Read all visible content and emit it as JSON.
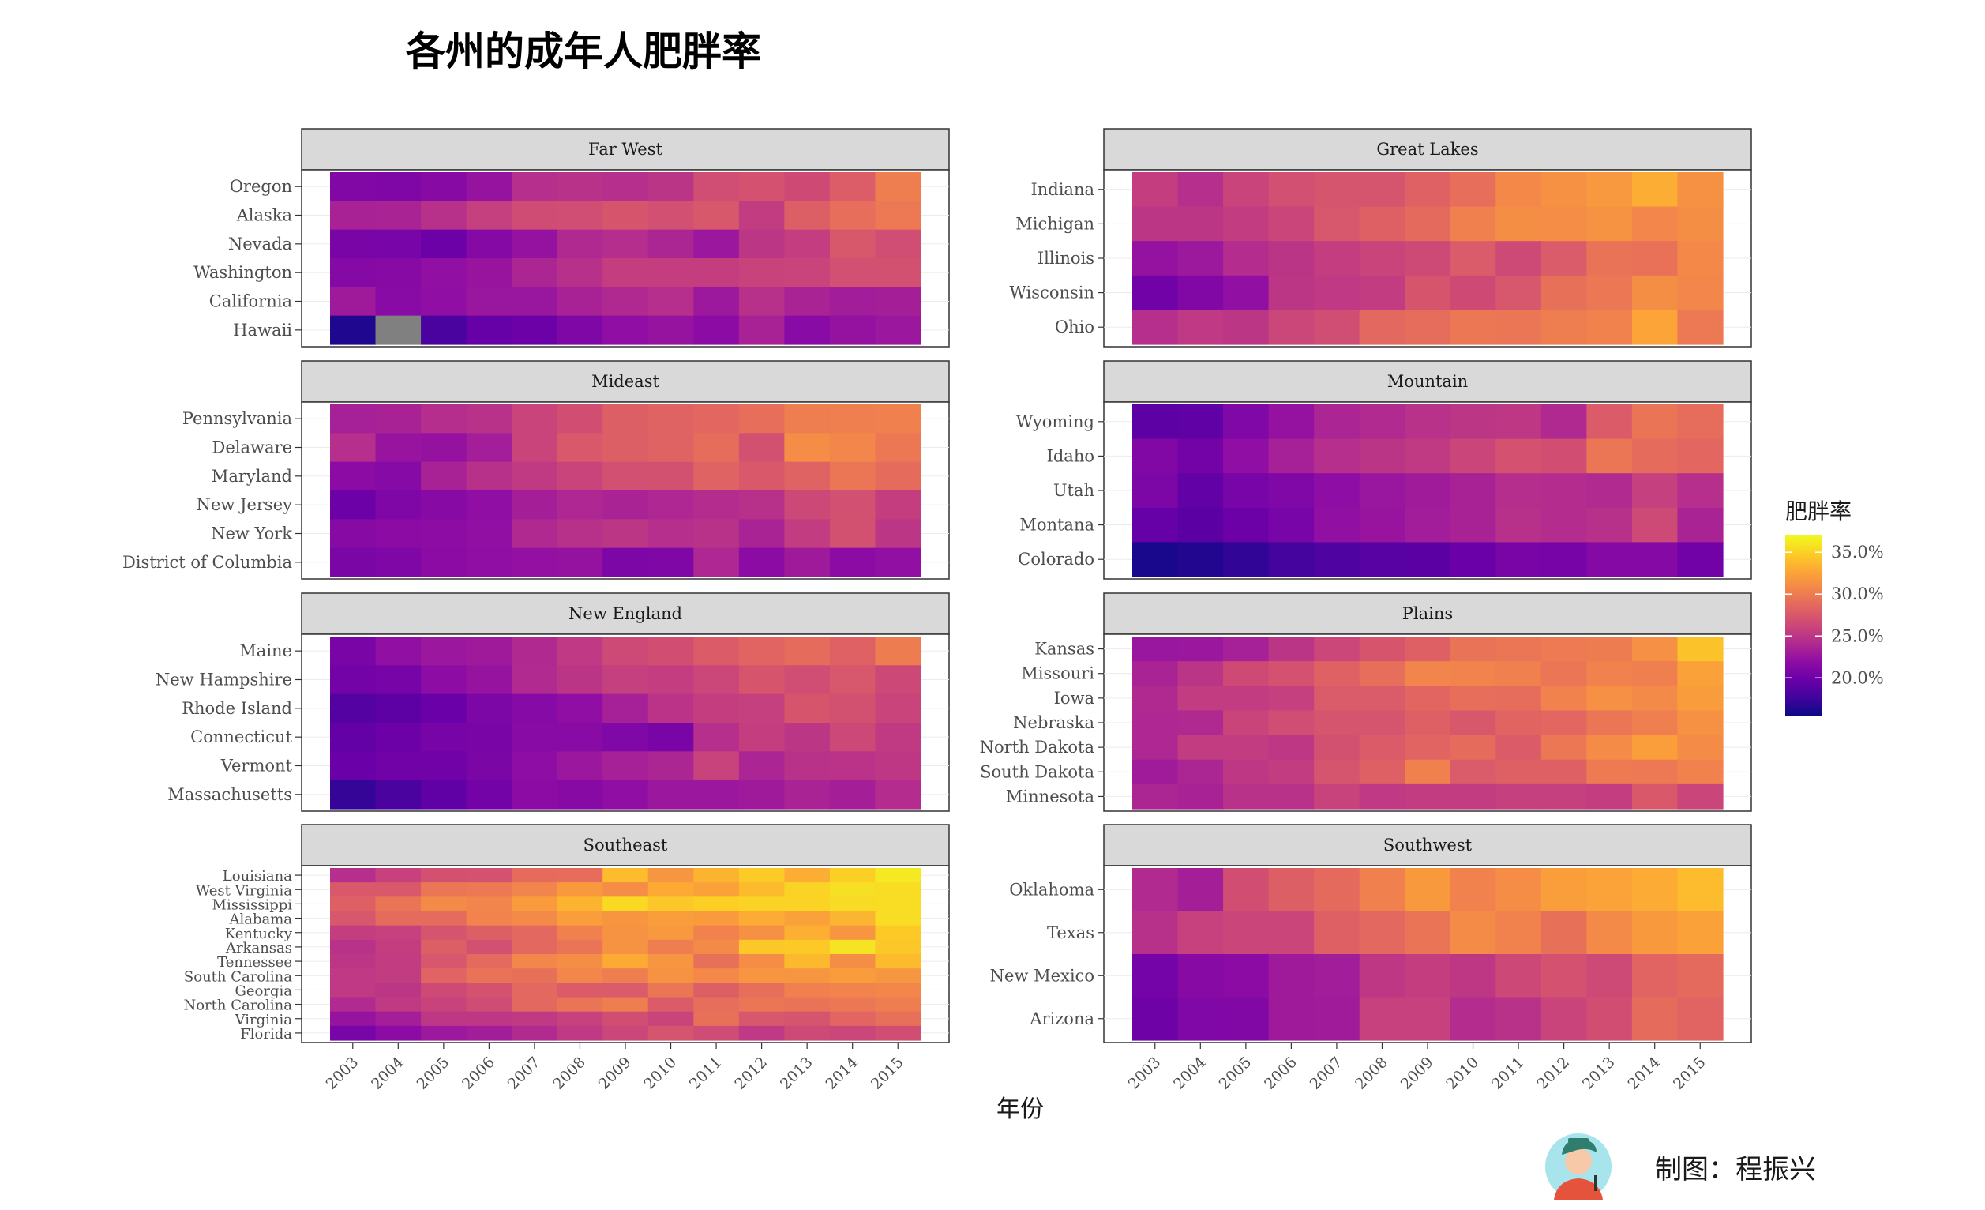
{
  "chart_data": {
    "type": "heatmap",
    "title": "各州的成年人肥胖率",
    "xlabel": "年份",
    "legend": {
      "title": "肥胖率",
      "labels": [
        "20.0%",
        "25.0%",
        "30.0%",
        "35.0%"
      ],
      "breaks": [
        20,
        25,
        30,
        35
      ],
      "range": [
        15.5,
        37
      ],
      "colormap": "plasma",
      "missing_color": "#808080",
      "placement": "right"
    },
    "years": [
      "2003",
      "2004",
      "2005",
      "2006",
      "2007",
      "2008",
      "2009",
      "2010",
      "2011",
      "2012",
      "2013",
      "2014",
      "2015"
    ],
    "panels": [
      {
        "name": "Far West",
        "states": [
          {
            "name": "Oregon",
            "values": [
              21.2,
              21.0,
              21.5,
              22.4,
              24.5,
              24.7,
              24.5,
              24.9,
              26.7,
              27.1,
              26.5,
              27.9,
              30.1
            ]
          },
          {
            "name": "Alaska",
            "values": [
              23.5,
              23.6,
              24.6,
              25.7,
              26.6,
              26.7,
              27.3,
              26.9,
              27.5,
              25.4,
              28.0,
              29.1,
              29.8
            ]
          },
          {
            "name": "Nevada",
            "values": [
              20.7,
              20.6,
              20.0,
              21.3,
              22.3,
              24.0,
              24.4,
              23.8,
              22.7,
              25.0,
              25.5,
              27.5,
              26.7
            ]
          },
          {
            "name": "Washington",
            "values": [
              21.3,
              21.5,
              22.1,
              22.5,
              23.8,
              24.6,
              25.6,
              25.6,
              25.6,
              25.9,
              26.0,
              26.9,
              27.0
            ]
          },
          {
            "name": "California",
            "values": [
              22.9,
              21.6,
              22.0,
              22.6,
              22.6,
              23.5,
              24.0,
              24.5,
              22.8,
              24.6,
              23.6,
              23.1,
              23.3
            ]
          },
          {
            "name": "Hawaii",
            "values": [
              16.3,
              null,
              18.2,
              19.6,
              20.0,
              21.0,
              22.0,
              22.4,
              21.7,
              23.5,
              21.6,
              22.3,
              22.7
            ]
          }
        ]
      },
      {
        "name": "Great Lakes",
        "states": [
          {
            "name": "Indiana",
            "values": [
              25.6,
              24.5,
              26.0,
              26.9,
              27.2,
              27.2,
              28.2,
              29.1,
              30.8,
              31.4,
              31.8,
              33.1,
              31.4
            ]
          },
          {
            "name": "Michigan",
            "values": [
              25.0,
              25.0,
              25.4,
              26.1,
              27.4,
              28.1,
              28.8,
              30.3,
              31.2,
              31.1,
              31.5,
              30.7,
              31.2
            ]
          },
          {
            "name": "Illinois",
            "values": [
              22.3,
              22.8,
              24.3,
              24.9,
              25.5,
              26.0,
              26.4,
              27.7,
              26.4,
              27.7,
              29.4,
              29.3,
              30.8
            ]
          },
          {
            "name": "Wisconsin",
            "values": [
              20.2,
              21.2,
              22.1,
              25.0,
              25.2,
              25.4,
              27.3,
              26.5,
              27.4,
              29.2,
              29.7,
              31.2,
              30.7
            ]
          },
          {
            "name": "Ohio",
            "values": [
              24.5,
              25.2,
              25.0,
              26.2,
              26.7,
              28.7,
              29.0,
              29.7,
              29.6,
              30.1,
              30.4,
              32.6,
              29.8
            ]
          }
        ]
      },
      {
        "name": "Mideast",
        "states": [
          {
            "name": "Pennsylvania",
            "values": [
              23.4,
              23.5,
              24.4,
              24.7,
              26.0,
              26.8,
              28.0,
              28.3,
              28.6,
              29.1,
              30.1,
              30.2,
              30.3
            ]
          },
          {
            "name": "Delaware",
            "values": [
              24.5,
              22.5,
              22.3,
              23.2,
              26.0,
              27.6,
              28.0,
              28.3,
              29.0,
              27.0,
              31.1,
              30.7,
              29.7
            ]
          },
          {
            "name": "Maryland",
            "values": [
              21.7,
              21.4,
              23.5,
              24.6,
              25.3,
              26.0,
              26.9,
              27.0,
              28.3,
              27.6,
              28.3,
              29.6,
              28.9
            ]
          },
          {
            "name": "New Jersey",
            "values": [
              19.9,
              21.0,
              21.5,
              22.0,
              23.3,
              23.9,
              23.6,
              23.9,
              24.3,
              24.6,
              26.3,
              26.9,
              25.6
            ]
          },
          {
            "name": "New York",
            "values": [
              21.5,
              21.7,
              21.8,
              22.1,
              24.0,
              24.6,
              25.0,
              24.5,
              24.7,
              23.6,
              25.4,
              27.0,
              25.0
            ]
          },
          {
            "name": "District of Columbia",
            "values": [
              20.8,
              21.0,
              21.7,
              22.0,
              22.2,
              22.3,
              20.9,
              21.0,
              23.9,
              21.7,
              22.9,
              21.7,
              22.1
            ]
          }
        ]
      },
      {
        "name": "Mountain",
        "states": [
          {
            "name": "Wyoming",
            "values": [
              19.1,
              19.3,
              21.1,
              22.3,
              23.7,
              24.1,
              24.7,
              25.0,
              25.1,
              24.0,
              27.8,
              29.5,
              29.0
            ]
          },
          {
            "name": "Idaho",
            "values": [
              21.2,
              20.3,
              22.0,
              23.4,
              24.5,
              24.9,
              25.3,
              26.1,
              27.1,
              26.8,
              29.6,
              28.9,
              28.6
            ]
          },
          {
            "name": "Utah",
            "values": [
              20.9,
              19.4,
              20.6,
              21.1,
              21.9,
              22.6,
              23.0,
              23.5,
              24.4,
              24.3,
              24.1,
              25.7,
              24.5
            ]
          },
          {
            "name": "Montana",
            "values": [
              19.6,
              19.0,
              19.9,
              20.6,
              22.1,
              22.5,
              23.1,
              23.5,
              24.6,
              24.3,
              24.6,
              26.4,
              23.6
            ]
          },
          {
            "name": "Colorado",
            "values": [
              16.0,
              16.4,
              17.0,
              17.9,
              18.4,
              18.9,
              19.0,
              19.8,
              20.7,
              20.5,
              21.3,
              21.3,
              20.2
            ]
          }
        ]
      },
      {
        "name": "New England",
        "states": [
          {
            "name": "Maine",
            "values": [
              20.7,
              22.1,
              22.7,
              22.9,
              24.0,
              25.2,
              26.4,
              26.8,
              27.8,
              28.4,
              28.9,
              28.2,
              30.0
            ]
          },
          {
            "name": "New Hampshire",
            "values": [
              20.3,
              20.5,
              21.8,
              22.4,
              24.1,
              24.9,
              25.7,
              25.5,
              26.2,
              27.3,
              26.7,
              27.4,
              26.3
            ]
          },
          {
            "name": "Rhode Island",
            "values": [
              18.7,
              19.1,
              19.8,
              20.9,
              21.4,
              22.0,
              23.4,
              24.8,
              25.6,
              25.7,
              27.3,
              27.0,
              26.0
            ]
          },
          {
            "name": "Connecticut",
            "values": [
              19.5,
              19.9,
              20.5,
              20.7,
              21.6,
              21.6,
              21.1,
              20.7,
              24.5,
              25.6,
              25.0,
              26.3,
              25.3
            ]
          },
          {
            "name": "Vermont",
            "values": [
              19.8,
              20.2,
              20.2,
              20.8,
              21.9,
              22.7,
              23.4,
              23.8,
              25.9,
              23.7,
              24.7,
              24.8,
              25.1
            ]
          },
          {
            "name": "Massachusetts",
            "values": [
              17.1,
              18.1,
              19.2,
              20.3,
              21.7,
              21.5,
              22.0,
              22.7,
              22.7,
              22.9,
              23.6,
              23.3,
              24.3
            ]
          }
        ]
      },
      {
        "name": "Plains",
        "states": [
          {
            "name": "Kansas",
            "values": [
              22.6,
              22.7,
              23.4,
              24.9,
              26.2,
              27.3,
              28.1,
              29.4,
              29.6,
              29.9,
              30.0,
              31.3,
              34.2
            ]
          },
          {
            "name": "Missouri",
            "values": [
              23.6,
              24.9,
              26.5,
              27.1,
              28.2,
              29.1,
              30.6,
              30.5,
              30.3,
              29.6,
              30.4,
              30.2,
              32.4
            ]
          },
          {
            "name": "Iowa",
            "values": [
              24.0,
              25.4,
              25.4,
              25.7,
              27.7,
              27.7,
              28.5,
              29.1,
              29.0,
              30.4,
              31.3,
              30.9,
              32.1
            ]
          },
          {
            "name": "Nebraska",
            "values": [
              23.9,
              24.0,
              26.0,
              26.7,
              27.2,
              27.2,
              28.1,
              27.5,
              28.4,
              28.6,
              29.6,
              30.2,
              31.4
            ]
          },
          {
            "name": "North Dakota",
            "values": [
              23.9,
              25.4,
              25.4,
              25.1,
              27.0,
              27.8,
              28.4,
              28.9,
              27.8,
              29.7,
              31.0,
              32.2,
              31.0
            ]
          },
          {
            "name": "South Dakota",
            "values": [
              23.0,
              23.8,
              25.1,
              25.4,
              27.2,
              28.1,
              30.3,
              27.7,
              28.1,
              28.1,
              29.9,
              29.8,
              30.4
            ]
          },
          {
            "name": "Minnesota",
            "values": [
              23.8,
              23.5,
              24.7,
              24.7,
              25.9,
              25.2,
              25.4,
              25.4,
              25.7,
              25.7,
              25.5,
              27.6,
              26.1
            ]
          }
        ]
      },
      {
        "name": "Southeast",
        "states": [
          {
            "name": "Louisiana",
            "values": [
              24.5,
              25.8,
              27.0,
              27.1,
              28.9,
              29.0,
              33.9,
              31.7,
              33.4,
              34.7,
              33.1,
              34.9,
              36.2
            ]
          },
          {
            "name": "West Virginia",
            "values": [
              27.6,
              27.6,
              29.6,
              29.8,
              30.6,
              31.9,
              31.1,
              32.9,
              32.4,
              33.8,
              35.1,
              35.7,
              35.6
            ]
          },
          {
            "name": "Mississippi",
            "values": [
              28.1,
              29.5,
              30.9,
              30.6,
              32.0,
              33.4,
              35.4,
              34.5,
              34.9,
              35.1,
              35.1,
              35.5,
              35.6
            ]
          },
          {
            "name": "Alabama",
            "values": [
              27.4,
              28.9,
              28.9,
              30.5,
              30.9,
              32.2,
              31.6,
              32.2,
              32.0,
              33.0,
              32.4,
              33.5,
              35.6
            ]
          },
          {
            "name": "Kentucky",
            "values": [
              25.6,
              25.8,
              27.2,
              28.0,
              28.7,
              30.3,
              31.5,
              31.8,
              30.4,
              31.3,
              33.2,
              31.6,
              34.6
            ]
          },
          {
            "name": "Arkansas",
            "values": [
              24.7,
              25.6,
              28.0,
              26.9,
              28.7,
              29.5,
              31.5,
              30.1,
              30.9,
              34.5,
              34.6,
              35.9,
              34.5
            ]
          },
          {
            "name": "Tennessee",
            "values": [
              25.0,
              25.4,
              27.4,
              28.8,
              30.7,
              31.2,
              32.9,
              31.7,
              29.2,
              31.1,
              33.7,
              31.2,
              33.8
            ]
          },
          {
            "name": "South Carolina",
            "values": [
              25.2,
              25.4,
              28.4,
              29.4,
              29.2,
              30.7,
              30.1,
              31.5,
              30.8,
              31.6,
              31.7,
              32.1,
              31.7
            ]
          },
          {
            "name": "Georgia",
            "values": [
              25.2,
              25.0,
              26.5,
              27.1,
              28.7,
              27.8,
              27.7,
              29.6,
              28.0,
              29.1,
              30.3,
              30.5,
              30.7
            ]
          },
          {
            "name": "North Carolina",
            "values": [
              24.1,
              25.3,
              25.9,
              26.6,
              28.7,
              29.5,
              30.1,
              27.8,
              29.1,
              29.6,
              29.4,
              29.7,
              30.1
            ]
          },
          {
            "name": "Virginia",
            "values": [
              22.4,
              23.2,
              25.1,
              25.1,
              25.3,
              25.8,
              26.8,
              26.0,
              29.2,
              27.4,
              27.2,
              28.5,
              29.2
            ]
          },
          {
            "name": "Florida",
            "values": [
              20.6,
              21.7,
              22.8,
              23.1,
              24.1,
              25.2,
              26.2,
              27.2,
              26.6,
              25.2,
              26.4,
              26.2,
              26.8
            ]
          }
        ]
      },
      {
        "name": "Southwest",
        "states": [
          {
            "name": "Oklahoma",
            "values": [
              24.1,
              23.3,
              26.8,
              28.0,
              28.8,
              30.3,
              31.9,
              30.4,
              31.1,
              32.2,
              32.5,
              33.0,
              33.9
            ]
          },
          {
            "name": "Texas",
            "values": [
              24.6,
              25.8,
              26.1,
              26.1,
              28.1,
              28.7,
              29.5,
              31.0,
              30.4,
              29.2,
              30.9,
              31.9,
              32.4
            ]
          },
          {
            "name": "New Mexico",
            "values": [
              20.4,
              21.5,
              21.7,
              22.9,
              23.1,
              25.1,
              25.6,
              25.1,
              26.3,
              27.1,
              26.4,
              28.4,
              28.8
            ]
          },
          {
            "name": "Arizona",
            "values": [
              20.1,
              21.1,
              21.2,
              22.9,
              23.0,
              25.8,
              25.8,
              24.3,
              24.7,
              26.0,
              26.8,
              28.9,
              28.4
            ]
          }
        ]
      }
    ]
  },
  "credit": {
    "text": "制图：程振兴",
    "avatar_icon": "person-avatar-icon"
  }
}
